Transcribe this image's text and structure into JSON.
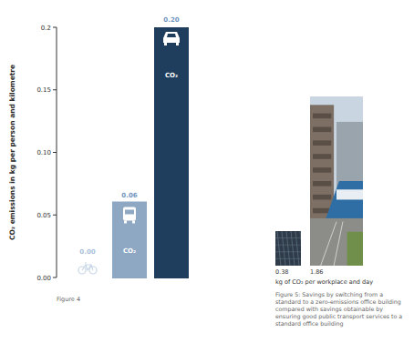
{
  "chart_data": [
    {
      "type": "bar",
      "caption": "Figure 4",
      "ylabel": "CO₂ emissions in kg per person and kilometre",
      "categories": [
        null,
        null,
        null
      ],
      "values": [
        0,
        0.06,
        0.2
      ],
      "value_labels": [
        "0.00",
        "0.06",
        "0.20"
      ],
      "colors": [
        "#c6d6e6",
        "#8ea7c3",
        "#1f3d5c"
      ],
      "data_labels": true,
      "annotations": [
        "CO₂"
      ],
      "ylim": [
        0,
        0.2
      ],
      "yticks": [
        {
          "value": 0,
          "label": "0.00"
        },
        0.05,
        {
          "value": 0.1,
          "label": "0.10"
        },
        0.15,
        0.2
      ]
    },
    {
      "type": "bar",
      "caption": "Figure 5: Savings by switching from a standard to a zero-emissions office building compared with savings obtainable by ensuring good public transport services to a standard office building",
      "xlabel": "kg of CO₂ per workplace and day",
      "categories": [
        null,
        null
      ],
      "values": [
        0.38,
        1.86
      ],
      "data_labels": true,
      "tick_labels": false,
      "ylim": [
        0,
        2
      ]
    }
  ]
}
